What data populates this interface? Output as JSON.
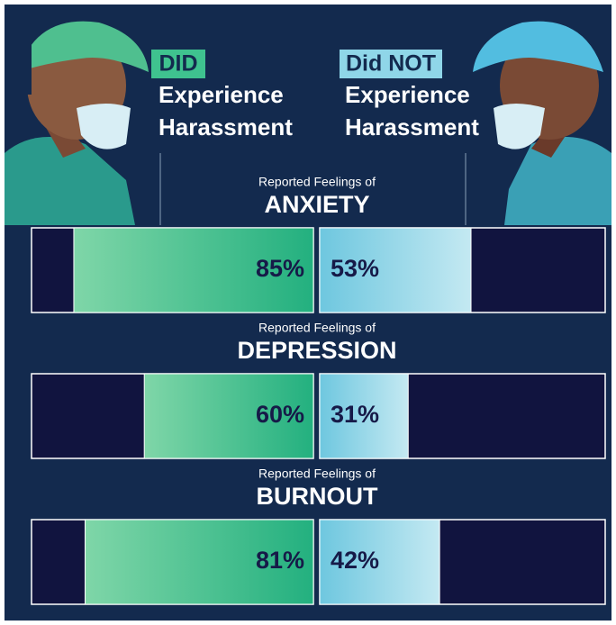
{
  "chart_data": {
    "type": "butterfly",
    "category_prefix": "Reported Feelings of",
    "categories": [
      "ANXIETY",
      "DEPRESSION",
      "BURNOUT"
    ],
    "xlim": [
      0,
      100
    ],
    "series": [
      {
        "name": "DID",
        "label_lines": [
          "Experience",
          "Harassment"
        ],
        "color": "#3fc28f",
        "values": [
          85,
          60,
          81
        ],
        "value_labels": [
          "85%",
          "60%",
          "81%"
        ]
      },
      {
        "name": "Did NOT",
        "label_lines": [
          "Experience",
          "Harassment"
        ],
        "color": "#8fd6e8",
        "values": [
          53,
          31,
          42
        ],
        "value_labels": [
          "53%",
          "31%",
          "42%"
        ]
      }
    ]
  }
}
